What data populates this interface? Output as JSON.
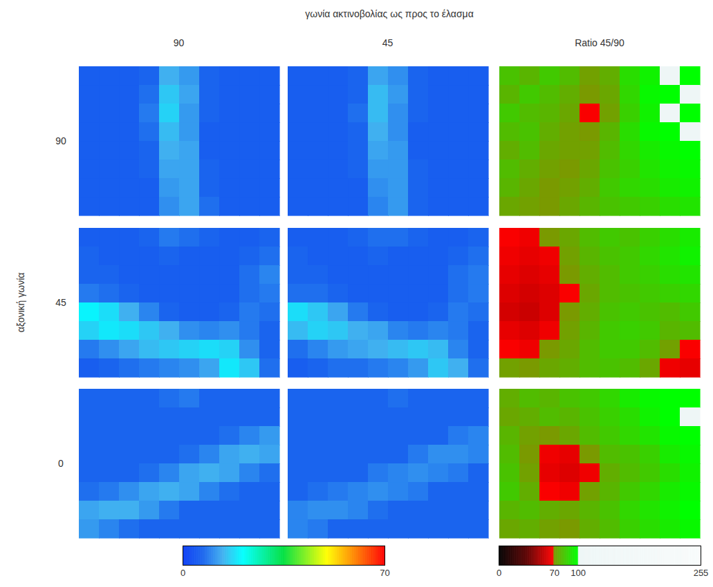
{
  "chart_data": {
    "type": "heatmap_grid",
    "title": "γωνία ακτινοβολίας ως προς το έλασμα",
    "row_axis_label": "αξονική γωνία",
    "row_labels": [
      "90",
      "45",
      "0"
    ],
    "columns": [
      {
        "label": "90",
        "panels": [
          [
            [
              6,
              6,
              6,
              7,
              14,
              12,
              7,
              6,
              6,
              6
            ],
            [
              6,
              6,
              6,
              8,
              16,
              13,
              7,
              6,
              6,
              6
            ],
            [
              6,
              6,
              6,
              9,
              17,
              12,
              7,
              6,
              6,
              6
            ],
            [
              6,
              6,
              6,
              8,
              15,
              12,
              6,
              6,
              6,
              6
            ],
            [
              6,
              6,
              6,
              7,
              14,
              13,
              6,
              6,
              6,
              6
            ],
            [
              6,
              6,
              6,
              7,
              13,
              13,
              7,
              6,
              6,
              6
            ],
            [
              6,
              6,
              6,
              6,
              12,
              13,
              7,
              6,
              6,
              6
            ],
            [
              6,
              6,
              6,
              6,
              11,
              13,
              8,
              6,
              6,
              6
            ]
          ],
          [
            [
              6,
              6,
              6,
              7,
              9,
              8,
              7,
              6,
              6,
              7
            ],
            [
              7,
              6,
              6,
              6,
              7,
              6,
              6,
              6,
              7,
              8
            ],
            [
              7,
              7,
              6,
              6,
              6,
              6,
              6,
              6,
              8,
              10
            ],
            [
              9,
              8,
              7,
              6,
              6,
              6,
              6,
              6,
              8,
              9
            ],
            [
              20,
              18,
              14,
              10,
              7,
              6,
              6,
              7,
              9,
              8
            ],
            [
              17,
              19,
              18,
              16,
              14,
              11,
              10,
              11,
              9,
              7
            ],
            [
              9,
              11,
              13,
              15,
              16,
              17,
              18,
              17,
              11,
              7
            ],
            [
              6,
              7,
              8,
              9,
              10,
              11,
              13,
              19,
              16,
              8
            ]
          ],
          [
            [
              7,
              7,
              7,
              7,
              8,
              9,
              7,
              7,
              7,
              7
            ],
            [
              7,
              7,
              7,
              7,
              7,
              7,
              7,
              7,
              7,
              7
            ],
            [
              7,
              7,
              7,
              7,
              7,
              7,
              7,
              8,
              10,
              12
            ],
            [
              7,
              7,
              7,
              7,
              7,
              8,
              10,
              13,
              14,
              13
            ],
            [
              7,
              7,
              7,
              8,
              10,
              13,
              14,
              13,
              10,
              8
            ],
            [
              8,
              9,
              11,
              13,
              14,
              13,
              10,
              8,
              7,
              7
            ],
            [
              13,
              14,
              14,
              12,
              9,
              7,
              7,
              7,
              7,
              7
            ],
            [
              12,
              10,
              8,
              7,
              7,
              7,
              7,
              7,
              7,
              7
            ]
          ]
        ]
      },
      {
        "label": "45",
        "panels": [
          [
            [
              6,
              6,
              6,
              7,
              13,
              11,
              7,
              6,
              6,
              6
            ],
            [
              6,
              6,
              6,
              7,
              15,
              12,
              7,
              6,
              6,
              6
            ],
            [
              6,
              6,
              6,
              8,
              15,
              11,
              7,
              6,
              6,
              6
            ],
            [
              6,
              6,
              6,
              7,
              14,
              11,
              6,
              6,
              6,
              6
            ],
            [
              6,
              6,
              6,
              7,
              13,
              12,
              6,
              6,
              6,
              6
            ],
            [
              6,
              6,
              6,
              7,
              12,
              12,
              7,
              6,
              6,
              6
            ],
            [
              6,
              6,
              6,
              6,
              11,
              12,
              7,
              6,
              6,
              6
            ],
            [
              6,
              6,
              6,
              6,
              10,
              12,
              7,
              6,
              6,
              6
            ]
          ],
          [
            [
              6,
              6,
              6,
              7,
              8,
              8,
              7,
              6,
              6,
              7
            ],
            [
              7,
              6,
              6,
              6,
              7,
              6,
              6,
              6,
              7,
              8
            ],
            [
              7,
              7,
              6,
              6,
              6,
              6,
              6,
              6,
              8,
              9
            ],
            [
              8,
              8,
              7,
              6,
              6,
              6,
              6,
              6,
              8,
              9
            ],
            [
              18,
              16,
              13,
              9,
              7,
              6,
              6,
              7,
              9,
              8
            ],
            [
              15,
              17,
              16,
              14,
              13,
              10,
              9,
              10,
              9,
              7
            ],
            [
              8,
              10,
              12,
              13,
              14,
              15,
              16,
              15,
              10,
              7
            ],
            [
              6,
              7,
              8,
              8,
              9,
              10,
              12,
              16,
              14,
              8
            ]
          ],
          [
            [
              7,
              7,
              7,
              7,
              7,
              8,
              7,
              7,
              7,
              7
            ],
            [
              7,
              7,
              7,
              7,
              7,
              7,
              7,
              7,
              7,
              7
            ],
            [
              7,
              7,
              7,
              7,
              7,
              7,
              7,
              7,
              9,
              10
            ],
            [
              7,
              7,
              7,
              7,
              7,
              7,
              9,
              11,
              11,
              10
            ],
            [
              7,
              7,
              7,
              7,
              9,
              10,
              11,
              10,
              9,
              7
            ],
            [
              7,
              8,
              9,
              10,
              11,
              10,
              9,
              7,
              7,
              7
            ],
            [
              10,
              11,
              11,
              10,
              8,
              7,
              7,
              7,
              7,
              7
            ],
            [
              10,
              9,
              7,
              7,
              7,
              7,
              7,
              7,
              7,
              7
            ]
          ]
        ]
      },
      {
        "label": "Ratio 45/90",
        "panels": [
          [
            [
              82,
              78,
              84,
              80,
              72,
              76,
              90,
              96,
              102,
              100
            ],
            [
              78,
              84,
              80,
              76,
              70,
              74,
              88,
              98,
              100,
              104
            ],
            [
              84,
              80,
              78,
              74,
              68,
              72,
              86,
              96,
              104,
              100
            ],
            [
              80,
              82,
              76,
              72,
              70,
              78,
              90,
              98,
              100,
              102
            ],
            [
              76,
              80,
              74,
              72,
              72,
              80,
              88,
              94,
              98,
              100
            ],
            [
              80,
              76,
              72,
              70,
              74,
              82,
              86,
              92,
              96,
              98
            ],
            [
              78,
              74,
              70,
              72,
              76,
              84,
              88,
              90,
              94,
              96
            ],
            [
              74,
              72,
              70,
              74,
              78,
              82,
              84,
              86,
              90,
              92
            ]
          ],
          [
            [
              68,
              66,
              70,
              74,
              80,
              84,
              82,
              86,
              90,
              94
            ],
            [
              66,
              64,
              66,
              72,
              78,
              82,
              84,
              88,
              92,
              96
            ],
            [
              64,
              62,
              64,
              70,
              76,
              80,
              84,
              86,
              90,
              92
            ],
            [
              62,
              60,
              62,
              68,
              74,
              80,
              82,
              84,
              86,
              88
            ],
            [
              60,
              58,
              62,
              70,
              76,
              82,
              84,
              82,
              80,
              84
            ],
            [
              64,
              62,
              66,
              72,
              78,
              84,
              86,
              84,
              78,
              80
            ],
            [
              68,
              66,
              70,
              74,
              80,
              84,
              84,
              80,
              72,
              68
            ],
            [
              72,
              70,
              74,
              76,
              80,
              82,
              80,
              74,
              66,
              64
            ]
          ],
          [
            [
              76,
              80,
              78,
              82,
              84,
              88,
              94,
              98,
              100,
              100
            ],
            [
              74,
              76,
              80,
              78,
              82,
              86,
              90,
              96,
              100,
              102
            ],
            [
              78,
              72,
              70,
              74,
              80,
              84,
              88,
              92,
              98,
              100
            ],
            [
              80,
              70,
              66,
              64,
              70,
              80,
              82,
              86,
              94,
              98
            ],
            [
              82,
              72,
              64,
              62,
              66,
              76,
              80,
              84,
              90,
              96
            ],
            [
              84,
              76,
              68,
              66,
              72,
              78,
              84,
              88,
              94,
              98
            ],
            [
              78,
              80,
              76,
              74,
              78,
              82,
              88,
              92,
              96,
              100
            ],
            [
              74,
              76,
              72,
              70,
              76,
              80,
              86,
              90,
              94,
              98
            ]
          ]
        ]
      }
    ],
    "colorbars": [
      {
        "columns": [
          "90",
          "45"
        ],
        "range": [
          0,
          70
        ],
        "ticks": [
          0,
          70
        ],
        "color_stops": [
          {
            "value": 0,
            "color": "#0b3cf5"
          },
          {
            "value": 7,
            "color": "#1a64ee"
          },
          {
            "value": 14,
            "color": "#40b0f0"
          },
          {
            "value": 21,
            "color": "#00ffff"
          },
          {
            "value": 35,
            "color": "#00e040"
          },
          {
            "value": 50,
            "color": "#ffff00"
          },
          {
            "value": 60,
            "color": "#ff8000"
          },
          {
            "value": 70,
            "color": "#ff0000"
          }
        ]
      },
      {
        "columns": [
          "Ratio 45/90"
        ],
        "range": [
          0,
          255
        ],
        "ticks": [
          0,
          70,
          100,
          255
        ],
        "color_stops": [
          {
            "value": 0,
            "color": "#000000"
          },
          {
            "value": 35,
            "color": "#5a0000"
          },
          {
            "value": 69,
            "color": "#ff0000"
          },
          {
            "value": 70,
            "color": "#7a9a00"
          },
          {
            "value": 100,
            "color": "#00ff00"
          },
          {
            "value": 101,
            "color": "#eef6f6"
          },
          {
            "value": 255,
            "color": "#f8fbfb"
          }
        ]
      }
    ]
  }
}
